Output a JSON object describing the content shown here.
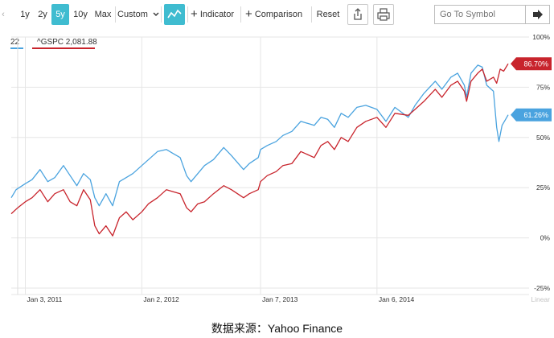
{
  "toolbar": {
    "ranges": [
      "1y",
      "2y",
      "5y",
      "10y",
      "Max"
    ],
    "active_range": "5y",
    "custom_label": "Custom",
    "indicator_label": "Indicator",
    "comparison_label": "Comparison",
    "reset_label": "Reset",
    "symbol_placeholder": "Go To Symbol"
  },
  "legend": {
    "series1_value": "22",
    "series2_label": "^GSPC 2,081.88"
  },
  "colors": {
    "series1": "#4aa3df",
    "series2": "#c8242c",
    "accent": "#3fbcd0"
  },
  "caption": "数据来源：Yahoo Finance",
  "chart_data": {
    "type": "line",
    "x_axis_labels": [
      "Jan 3, 2011",
      "Jan 2, 2012",
      "Jan 7, 2013",
      "Jan 6, 2014"
    ],
    "x_axis_label_dates": [
      "2011-01-03",
      "2012-01-02",
      "2013-01-07",
      "2014-01-06"
    ],
    "x_scale_label": "Linear",
    "y_ticks": [
      100,
      75,
      50,
      25,
      0,
      -25
    ],
    "y_tick_labels": [
      "100%",
      "75%",
      "50%",
      "25%",
      "0%",
      "-25%"
    ],
    "ylim": [
      -25,
      100
    ],
    "grid": true,
    "series": [
      {
        "color": "#4aa3df",
        "end_label": "61.26%",
        "points": [
          [
            "2010-11-20",
            20
          ],
          [
            "2010-12-05",
            24
          ],
          [
            "2011-01-03",
            27
          ],
          [
            "2011-01-24",
            29
          ],
          [
            "2011-02-18",
            34
          ],
          [
            "2011-03-14",
            28
          ],
          [
            "2011-04-05",
            30
          ],
          [
            "2011-05-02",
            36
          ],
          [
            "2011-05-23",
            31
          ],
          [
            "2011-06-13",
            26
          ],
          [
            "2011-07-04",
            32
          ],
          [
            "2011-07-25",
            29
          ],
          [
            "2011-08-08",
            20
          ],
          [
            "2011-08-22",
            16
          ],
          [
            "2011-09-12",
            22
          ],
          [
            "2011-10-03",
            16
          ],
          [
            "2011-10-24",
            28
          ],
          [
            "2011-11-14",
            30
          ],
          [
            "2011-12-05",
            32
          ],
          [
            "2012-01-02",
            36
          ],
          [
            "2012-01-23",
            39
          ],
          [
            "2012-02-20",
            43
          ],
          [
            "2012-03-19",
            44
          ],
          [
            "2012-04-09",
            42
          ],
          [
            "2012-05-01",
            40
          ],
          [
            "2012-05-21",
            31
          ],
          [
            "2012-06-04",
            28
          ],
          [
            "2012-06-25",
            32
          ],
          [
            "2012-07-16",
            36
          ],
          [
            "2012-08-13",
            39
          ],
          [
            "2012-09-14",
            45
          ],
          [
            "2012-10-08",
            41
          ],
          [
            "2012-11-15",
            34
          ],
          [
            "2012-12-03",
            37
          ],
          [
            "2012-12-31",
            40
          ],
          [
            "2013-01-07",
            44
          ],
          [
            "2013-01-28",
            46
          ],
          [
            "2013-02-25",
            48
          ],
          [
            "2013-03-18",
            51
          ],
          [
            "2013-04-15",
            53
          ],
          [
            "2013-05-13",
            58
          ],
          [
            "2013-06-24",
            56
          ],
          [
            "2013-07-15",
            60
          ],
          [
            "2013-08-05",
            59
          ],
          [
            "2013-08-26",
            55
          ],
          [
            "2013-09-16",
            62
          ],
          [
            "2013-10-08",
            60
          ],
          [
            "2013-11-04",
            65
          ],
          [
            "2013-12-02",
            66
          ],
          [
            "2014-01-06",
            64
          ],
          [
            "2014-02-03",
            58
          ],
          [
            "2014-03-03",
            65
          ],
          [
            "2014-04-14",
            60
          ],
          [
            "2014-05-05",
            66
          ],
          [
            "2014-06-02",
            72
          ],
          [
            "2014-07-07",
            78
          ],
          [
            "2014-07-28",
            74
          ],
          [
            "2014-08-25",
            80
          ],
          [
            "2014-09-15",
            82
          ],
          [
            "2014-10-06",
            76
          ],
          [
            "2014-10-13",
            70
          ],
          [
            "2014-10-27",
            82
          ],
          [
            "2014-11-17",
            86
          ],
          [
            "2014-12-01",
            85
          ],
          [
            "2014-12-15",
            76
          ],
          [
            "2015-01-05",
            73
          ],
          [
            "2015-01-15",
            55
          ],
          [
            "2015-01-22",
            48
          ],
          [
            "2015-02-01",
            56
          ],
          [
            "2015-02-12",
            59
          ],
          [
            "2015-02-20",
            61.26
          ]
        ]
      },
      {
        "color": "#c8242c",
        "label": "^GSPC",
        "end_label": "86.70%",
        "points": [
          [
            "2010-11-20",
            12
          ],
          [
            "2010-12-10",
            15
          ],
          [
            "2011-01-03",
            18
          ],
          [
            "2011-01-24",
            20
          ],
          [
            "2011-02-18",
            24
          ],
          [
            "2011-03-14",
            18
          ],
          [
            "2011-04-05",
            22
          ],
          [
            "2011-05-02",
            24
          ],
          [
            "2011-05-23",
            18
          ],
          [
            "2011-06-13",
            16
          ],
          [
            "2011-07-04",
            24
          ],
          [
            "2011-07-25",
            19
          ],
          [
            "2011-08-08",
            6
          ],
          [
            "2011-08-22",
            2
          ],
          [
            "2011-09-12",
            6
          ],
          [
            "2011-10-03",
            1
          ],
          [
            "2011-10-24",
            10
          ],
          [
            "2011-11-14",
            13
          ],
          [
            "2011-12-05",
            9
          ],
          [
            "2012-01-02",
            13
          ],
          [
            "2012-01-23",
            17
          ],
          [
            "2012-02-20",
            20
          ],
          [
            "2012-03-19",
            24
          ],
          [
            "2012-04-09",
            23
          ],
          [
            "2012-05-01",
            22
          ],
          [
            "2012-05-21",
            15
          ],
          [
            "2012-06-04",
            13
          ],
          [
            "2012-06-25",
            17
          ],
          [
            "2012-07-16",
            18
          ],
          [
            "2012-08-13",
            22
          ],
          [
            "2012-09-14",
            26
          ],
          [
            "2012-10-08",
            24
          ],
          [
            "2012-11-15",
            20
          ],
          [
            "2012-12-03",
            22
          ],
          [
            "2012-12-31",
            24
          ],
          [
            "2013-01-07",
            28
          ],
          [
            "2013-01-28",
            31
          ],
          [
            "2013-02-25",
            33
          ],
          [
            "2013-03-18",
            36
          ],
          [
            "2013-04-15",
            37
          ],
          [
            "2013-05-13",
            43
          ],
          [
            "2013-06-24",
            40
          ],
          [
            "2013-07-15",
            46
          ],
          [
            "2013-08-05",
            48
          ],
          [
            "2013-08-26",
            44
          ],
          [
            "2013-09-16",
            50
          ],
          [
            "2013-10-08",
            48
          ],
          [
            "2013-11-04",
            55
          ],
          [
            "2013-12-02",
            58
          ],
          [
            "2014-01-06",
            60
          ],
          [
            "2014-02-03",
            55
          ],
          [
            "2014-03-03",
            62
          ],
          [
            "2014-04-14",
            61
          ],
          [
            "2014-05-05",
            64
          ],
          [
            "2014-06-02",
            68
          ],
          [
            "2014-07-07",
            74
          ],
          [
            "2014-07-28",
            70
          ],
          [
            "2014-08-25",
            76
          ],
          [
            "2014-09-15",
            78
          ],
          [
            "2014-10-06",
            73
          ],
          [
            "2014-10-13",
            68
          ],
          [
            "2014-10-27",
            78
          ],
          [
            "2014-11-17",
            82
          ],
          [
            "2014-12-01",
            84
          ],
          [
            "2014-12-15",
            78
          ],
          [
            "2015-01-05",
            80
          ],
          [
            "2015-01-15",
            77
          ],
          [
            "2015-01-26",
            84
          ],
          [
            "2015-02-06",
            83
          ],
          [
            "2015-02-20",
            86.7
          ]
        ]
      }
    ]
  }
}
